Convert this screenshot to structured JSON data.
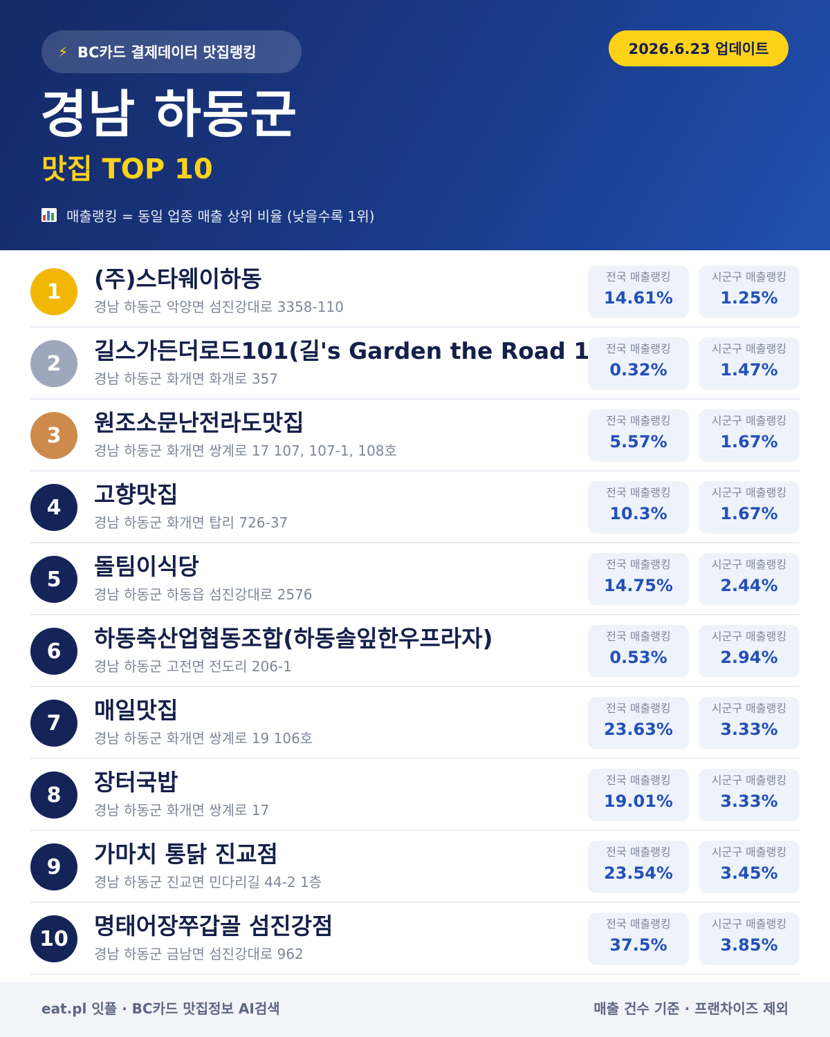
{
  "header": {
    "source_label": "BC카드 결제데이터 맛집랭킹",
    "bolt_icon": "⚡",
    "update_label": "2026.6.23 업데이트",
    "region": "경남 하동군",
    "subtitle": "맛집 TOP 10",
    "note": "매출랭킹 = 동일 업종 매출 상위 비율 (낮을수록 1위)",
    "note_icon": "bar-chart-icon"
  },
  "stat_labels": {
    "national": "전국 매출랭킹",
    "local": "시군구 매출랭킹"
  },
  "colors": {
    "gold": "#f2b705",
    "silver": "#9ea8bd",
    "bronze": "#cd8a4a",
    "navy": "#142459",
    "accent_yellow": "#ffd21a",
    "value_blue": "#2250b8"
  },
  "restaurants": [
    {
      "rank": "1",
      "name": "(주)스타웨이하동",
      "address": "경남 하동군 악양면 섬진강대로 3358-110",
      "national": "14.61%",
      "local": "1.25%"
    },
    {
      "rank": "2",
      "name": "길스가든더로드101(길's Garden the Road 1",
      "address": "경남 하동군 화개면 화개로 357",
      "national": "0.32%",
      "local": "1.47%"
    },
    {
      "rank": "3",
      "name": "원조소문난전라도맛집",
      "address": "경남 하동군 화개면 쌍계로 17 107, 107-1, 108호",
      "national": "5.57%",
      "local": "1.67%"
    },
    {
      "rank": "4",
      "name": "고향맛집",
      "address": "경남 하동군 화개면 탑리 726-37",
      "national": "10.3%",
      "local": "1.67%"
    },
    {
      "rank": "5",
      "name": "돌팀이식당",
      "address": "경남 하동군 하동읍 섬진강대로 2576",
      "national": "14.75%",
      "local": "2.44%"
    },
    {
      "rank": "6",
      "name": "하동축산업협동조합(하동솔잎한우프라자)",
      "address": "경남 하동군 고전면 전도리 206-1",
      "national": "0.53%",
      "local": "2.94%"
    },
    {
      "rank": "7",
      "name": "매일맛집",
      "address": "경남 하동군 화개면 쌍계로 19 106호",
      "national": "23.63%",
      "local": "3.33%"
    },
    {
      "rank": "8",
      "name": "장터국밥",
      "address": "경남 하동군 화개면 쌍계로 17",
      "national": "19.01%",
      "local": "3.33%"
    },
    {
      "rank": "9",
      "name": "가마치 통닭 진교점",
      "address": "경남 하동군 진교면 민다리길 44-2 1층",
      "national": "23.54%",
      "local": "3.45%"
    },
    {
      "rank": "10",
      "name": "명태어장쭈갑골 섬진강점",
      "address": "경남 하동군 금남면 섬진강대로 962",
      "national": "37.5%",
      "local": "3.85%"
    }
  ],
  "footer": {
    "left": "eat.pl 잇플 · BC카드 맛집정보 AI검색",
    "right": "매출 건수 기준 · 프랜차이즈 제외"
  }
}
